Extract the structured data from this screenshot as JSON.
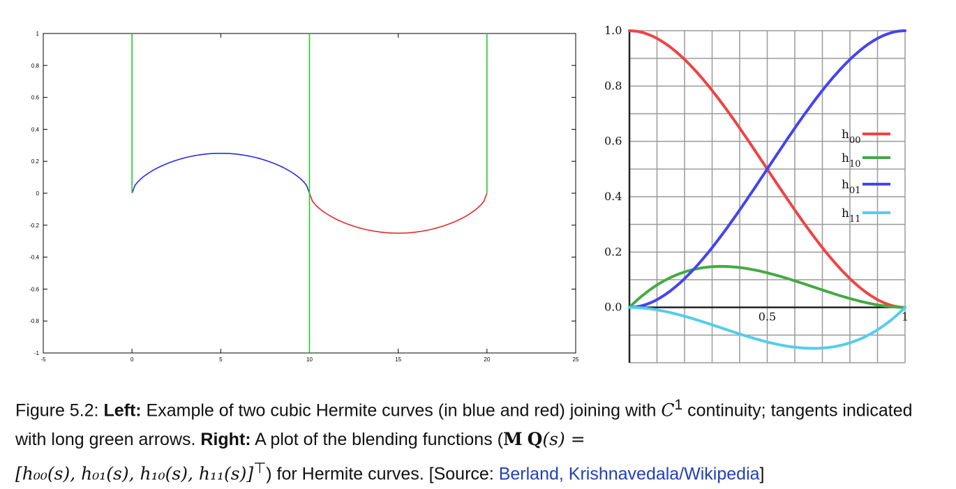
{
  "chart_data": [
    {
      "type": "line",
      "title": "",
      "xlabel": "",
      "ylabel": "",
      "xlim": [
        -5,
        25
      ],
      "ylim": [
        -1,
        1
      ],
      "xticks": [
        "-5",
        "0",
        "5",
        "10",
        "15",
        "20",
        "25"
      ],
      "yticks": [
        "-1",
        "-0.8",
        "-0.6",
        "-0.4",
        "-0.2",
        "0",
        "0.2",
        "0.4",
        "0.6",
        "0.8",
        "1"
      ],
      "grid": false,
      "series": [
        {
          "color": "#2a2ae0",
          "x": [
            0,
            1,
            2,
            3,
            4,
            5,
            6,
            7,
            8,
            9,
            10
          ],
          "y": [
            0,
            0.09,
            0.16,
            0.21,
            0.24,
            0.25,
            0.24,
            0.21,
            0.16,
            0.09,
            0
          ]
        },
        {
          "color": "#e02a2a",
          "x": [
            10,
            11,
            12,
            13,
            14,
            15,
            16,
            17,
            18,
            19,
            20
          ],
          "y": [
            0,
            -0.09,
            -0.16,
            -0.21,
            -0.24,
            -0.25,
            -0.24,
            -0.21,
            -0.16,
            -0.09,
            0
          ]
        },
        {
          "color": "#22cc22",
          "x": [
            0,
            0
          ],
          "y": [
            0,
            1
          ]
        },
        {
          "color": "#22cc22",
          "x": [
            10,
            10
          ],
          "y": [
            -1,
            1
          ]
        },
        {
          "color": "#22cc22",
          "x": [
            20,
            20
          ],
          "y": [
            0,
            1
          ]
        }
      ]
    },
    {
      "type": "line",
      "title": "",
      "xlabel": "",
      "ylabel": "",
      "xlim": [
        0,
        1
      ],
      "ylim": [
        -0.2,
        1
      ],
      "xticks": [
        "0.5",
        "1"
      ],
      "yticks": [
        "0.0",
        "0.2",
        "0.4",
        "0.6",
        "0.8",
        "1.0"
      ],
      "grid": true,
      "legend_position": "right",
      "series": [
        {
          "name": "h00",
          "color": "#ee4444",
          "x": [
            0,
            0.1,
            0.2,
            0.3,
            0.4,
            0.5,
            0.6,
            0.7,
            0.8,
            0.9,
            1
          ],
          "y": [
            1,
            0.972,
            0.896,
            0.784,
            0.648,
            0.5,
            0.352,
            0.216,
            0.104,
            0.028,
            0
          ]
        },
        {
          "name": "h10",
          "color": "#44aa44",
          "x": [
            0,
            0.1,
            0.2,
            0.3,
            0.4,
            0.5,
            0.6,
            0.7,
            0.8,
            0.9,
            1
          ],
          "y": [
            0,
            0.081,
            0.128,
            0.147,
            0.144,
            0.125,
            0.096,
            0.063,
            0.032,
            0.009,
            0
          ]
        },
        {
          "name": "h01",
          "color": "#4444ee",
          "x": [
            0,
            0.1,
            0.2,
            0.3,
            0.4,
            0.5,
            0.6,
            0.7,
            0.8,
            0.9,
            1
          ],
          "y": [
            0,
            0.028,
            0.104,
            0.216,
            0.352,
            0.5,
            0.648,
            0.784,
            0.896,
            0.972,
            1
          ]
        },
        {
          "name": "h11",
          "color": "#55ccee",
          "x": [
            0,
            0.1,
            0.2,
            0.3,
            0.4,
            0.5,
            0.6,
            0.7,
            0.8,
            0.9,
            1
          ],
          "y": [
            0,
            -0.009,
            -0.032,
            -0.063,
            -0.096,
            -0.125,
            -0.144,
            -0.147,
            -0.128,
            -0.081,
            0
          ]
        }
      ]
    }
  ],
  "caption": {
    "figure_label": "Figure 5.2: ",
    "left_label": "Left:",
    "left_text_a": " Example of two cubic Hermite curves (in blue and red) joining with ",
    "c1": "C",
    "c1_sup": "1",
    "left_text_b": " continuity; tangents indicated with long green arrows.  ",
    "right_label": "Right:",
    "right_text_a": " A plot of the blending functions (",
    "math_M": "M",
    "math_Q": "Q",
    "math_Qarg": "(s) =",
    "math_vector": "[h₀₀(s), h₀₁(s), h₁₀(s), h₁₁(s)]",
    "math_transpose": "⊤",
    "right_text_b": ") for Hermite curves. [Source: ",
    "source_link": "Berland, Krishnavedala/Wikipedia",
    "source_close": "]"
  }
}
